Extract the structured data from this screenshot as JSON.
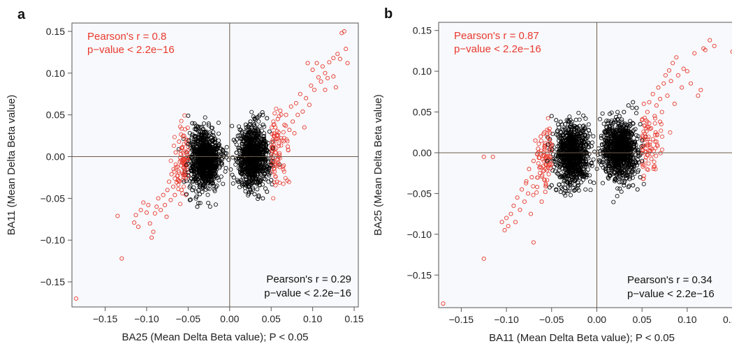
{
  "chart_data": [
    {
      "type": "scatter",
      "panel_label": "a",
      "xlabel": "BA25 (Mean Delta Beta value); P < 0.05",
      "ylabel": "BA11 (Mean Delta Beta value)",
      "xlim": [
        -0.19,
        0.155
      ],
      "ylim": [
        -0.18,
        0.16
      ],
      "x_ticks": [
        -0.15,
        -0.1,
        -0.05,
        0.0,
        0.05,
        0.1,
        0.15
      ],
      "x_tick_labels": [
        "−0.15",
        "−0.10",
        "−0.05",
        "0.00",
        "0.05",
        "0.10",
        "0.15"
      ],
      "y_ticks": [
        -0.15,
        -0.1,
        -0.05,
        0.0,
        0.05,
        0.1,
        0.15
      ],
      "y_tick_labels": [
        "−0.15",
        "−0.10",
        "−0.05",
        "0.00",
        "0.05",
        "0.10",
        "0.15"
      ],
      "annotations": {
        "top_left": [
          "Pearson's r = 0.8",
          "p−value < 2.2e−16"
        ],
        "bottom_right": [
          "Pearson's r = 0.29",
          "p−value < 2.2e−16"
        ]
      },
      "series": [
        {
          "color": "#e8392d",
          "points": [
            [
              -0.185,
              -0.17
            ],
            [
              -0.135,
              -0.071
            ],
            [
              -0.13,
              -0.122
            ],
            [
              -0.115,
              -0.079
            ],
            [
              -0.113,
              -0.07
            ],
            [
              -0.11,
              -0.084
            ],
            [
              -0.107,
              -0.064
            ],
            [
              -0.104,
              -0.055
            ],
            [
              -0.1,
              -0.067
            ],
            [
              -0.098,
              -0.058
            ],
            [
              -0.096,
              -0.08
            ],
            [
              -0.094,
              -0.097
            ],
            [
              -0.092,
              -0.09
            ],
            [
              -0.09,
              -0.068
            ],
            [
              -0.088,
              -0.06
            ],
            [
              -0.086,
              -0.05
            ],
            [
              -0.083,
              -0.064
            ],
            [
              -0.08,
              -0.046
            ],
            [
              -0.078,
              -0.058
            ],
            [
              -0.076,
              -0.072
            ],
            [
              -0.075,
              -0.04
            ],
            [
              -0.073,
              -0.03
            ],
            [
              -0.071,
              -0.052
            ],
            [
              -0.07,
              -0.021
            ],
            [
              -0.068,
              -0.036
            ],
            [
              -0.066,
              -0.046
            ],
            [
              -0.065,
              0.005
            ],
            [
              -0.063,
              -0.012
            ],
            [
              -0.062,
              -0.028
            ],
            [
              -0.061,
              0.018
            ],
            [
              -0.06,
              -0.006
            ],
            [
              -0.059,
              0.003
            ],
            [
              -0.058,
              -0.04
            ],
            [
              -0.057,
              0.01
            ],
            [
              -0.056,
              -0.022
            ],
            [
              -0.055,
              0.025
            ],
            [
              -0.054,
              -0.015
            ],
            [
              0.053,
              0.025
            ],
            [
              0.054,
              -0.018
            ],
            [
              0.055,
              0.035
            ],
            [
              0.056,
              0.01
            ],
            [
              0.057,
              -0.03
            ],
            [
              0.058,
              0.045
            ],
            [
              0.06,
              0.002
            ],
            [
              0.061,
              0.055
            ],
            [
              0.062,
              0.022
            ],
            [
              0.064,
              -0.012
            ],
            [
              0.066,
              0.038
            ],
            [
              0.068,
              0.05
            ],
            [
              0.07,
              0.012
            ],
            [
              0.072,
              0.032
            ],
            [
              0.074,
              0.06
            ],
            [
              0.076,
              0.042
            ],
            [
              0.078,
              0.028
            ],
            [
              0.08,
              0.064
            ],
            [
              0.082,
              0.05
            ],
            [
              0.085,
              0.075
            ],
            [
              0.088,
              0.054
            ],
            [
              0.09,
              0.035
            ],
            [
              0.092,
              0.07
            ],
            [
              0.094,
              0.112
            ],
            [
              0.096,
              0.062
            ],
            [
              0.098,
              0.085
            ],
            [
              0.1,
              0.104
            ],
            [
              0.102,
              0.08
            ],
            [
              0.105,
              0.112
            ],
            [
              0.107,
              0.095
            ],
            [
              0.11,
              0.09
            ],
            [
              0.112,
              0.108
            ],
            [
              0.115,
              0.1
            ],
            [
              0.118,
              0.094
            ],
            [
              0.12,
              0.113
            ],
            [
              0.125,
              0.096
            ],
            [
              0.128,
              0.083
            ],
            [
              0.13,
              0.123
            ],
            [
              0.133,
              0.117
            ],
            [
              0.135,
              0.148
            ],
            [
              0.138,
              0.15
            ],
            [
              0.14,
              0.129
            ],
            [
              0.142,
              0.112
            ],
            [
              0.125,
              0.118
            ],
            [
              0.115,
              0.08
            ]
          ]
        },
        {
          "color": "#000000",
          "points": [
            [
              -0.05,
              0.049
            ],
            [
              -0.045,
              0.04
            ],
            [
              -0.042,
              0.033
            ],
            [
              -0.038,
              0.036
            ],
            [
              -0.035,
              0.03
            ],
            [
              -0.03,
              0.03
            ],
            [
              -0.025,
              0.025
            ],
            [
              -0.02,
              0.02
            ],
            [
              -0.052,
              -0.045
            ],
            [
              -0.048,
              -0.052
            ],
            [
              -0.045,
              -0.04
            ],
            [
              -0.04,
              -0.048
            ],
            [
              -0.036,
              -0.045
            ],
            [
              -0.033,
              -0.038
            ],
            [
              -0.03,
              -0.036
            ],
            [
              -0.025,
              -0.03
            ],
            [
              -0.039,
              -0.06
            ],
            [
              -0.055,
              -0.03
            ],
            [
              -0.052,
              -0.01
            ],
            [
              -0.05,
              0.015
            ],
            [
              -0.012,
              0.01
            ],
            [
              -0.008,
              0.008
            ],
            [
              -0.004,
              0.004
            ],
            [
              0.005,
              -0.025
            ],
            [
              0.01,
              -0.03
            ],
            [
              0.015,
              -0.032
            ],
            [
              0.02,
              -0.035
            ],
            [
              0.025,
              -0.04
            ],
            [
              0.03,
              -0.045
            ],
            [
              0.035,
              -0.048
            ],
            [
              0.04,
              -0.05
            ],
            [
              0.045,
              -0.042
            ],
            [
              0.05,
              -0.028
            ],
            [
              0.048,
              0.03
            ],
            [
              0.045,
              0.046
            ],
            [
              0.04,
              0.05
            ],
            [
              0.035,
              0.048
            ],
            [
              0.03,
              0.045
            ],
            [
              0.025,
              0.042
            ],
            [
              0.02,
              0.035
            ],
            [
              0.015,
              0.03
            ],
            [
              0.01,
              0.025
            ],
            [
              0.005,
              0.02
            ],
            [
              0.052,
              0.01
            ],
            [
              0.05,
              -0.01
            ]
          ]
        }
      ]
    },
    {
      "type": "scatter",
      "panel_label": "b",
      "xlabel": "BA11 (Mean Delta Beta value); P < 0.05",
      "ylabel": "BA25 (Mean Delta Beta value)",
      "xlim": [
        -0.175,
        0.165
      ],
      "ylim": [
        -0.19,
        0.16
      ],
      "x_ticks": [
        -0.15,
        -0.1,
        -0.05,
        0.0,
        0.05,
        0.1,
        0.15
      ],
      "x_tick_labels": [
        "−0.15",
        "−0.10",
        "−0.05",
        "0.00",
        "0.05",
        "0.10",
        "0.15"
      ],
      "y_ticks": [
        -0.15,
        -0.1,
        -0.05,
        0.0,
        0.05,
        0.1,
        0.15
      ],
      "y_tick_labels": [
        "−0.15",
        "−0.10",
        "−0.05",
        "0.00",
        "0.05",
        "0.10",
        "0.15"
      ],
      "annotations": {
        "top_left": [
          "Pearson's r = 0.87",
          "p−value < 2.2e−16"
        ],
        "bottom_right": [
          "Pearson's r = 0.34",
          "p−value < 2.2e−16"
        ]
      },
      "series": [
        {
          "color": "#e8392d",
          "points": [
            [
              -0.17,
              -0.185
            ],
            [
              -0.125,
              -0.13
            ],
            [
              -0.125,
              -0.005
            ],
            [
              -0.115,
              -0.005
            ],
            [
              -0.105,
              -0.085
            ],
            [
              -0.102,
              -0.095
            ],
            [
              -0.1,
              -0.08
            ],
            [
              -0.098,
              -0.09
            ],
            [
              -0.095,
              -0.075
            ],
            [
              -0.092,
              -0.065
            ],
            [
              -0.09,
              -0.085
            ],
            [
              -0.088,
              -0.055
            ],
            [
              -0.085,
              -0.07
            ],
            [
              -0.083,
              -0.045
            ],
            [
              -0.08,
              -0.06
            ],
            [
              -0.078,
              -0.035
            ],
            [
              -0.076,
              -0.05
            ],
            [
              -0.075,
              -0.02
            ],
            [
              -0.073,
              -0.075
            ],
            [
              -0.072,
              -0.03
            ],
            [
              -0.07,
              -0.01
            ],
            [
              -0.068,
              0.015
            ],
            [
              -0.066,
              -0.042
            ],
            [
              -0.065,
              0.005
            ],
            [
              -0.063,
              -0.025
            ],
            [
              -0.062,
              0.02
            ],
            [
              -0.061,
              -0.06
            ],
            [
              -0.06,
              -0.008
            ],
            [
              -0.058,
              0.025
            ],
            [
              -0.057,
              -0.048
            ],
            [
              -0.056,
              -0.015
            ],
            [
              -0.055,
              0.028
            ],
            [
              -0.07,
              -0.11
            ],
            [
              0.05,
              0.04
            ],
            [
              0.052,
              0.06
            ],
            [
              0.054,
              0.02
            ],
            [
              0.056,
              0.05
            ],
            [
              0.058,
              0.062
            ],
            [
              0.06,
              0.03
            ],
            [
              0.062,
              0.072
            ],
            [
              0.064,
              0.045
            ],
            [
              0.066,
              0.058
            ],
            [
              0.068,
              0.08
            ],
            [
              0.07,
              0.066
            ],
            [
              0.072,
              0.05
            ],
            [
              0.074,
              0.085
            ],
            [
              0.076,
              0.095
            ],
            [
              0.078,
              0.07
            ],
            [
              0.08,
              0.101
            ],
            [
              0.082,
              0.088
            ],
            [
              0.084,
              0.11
            ],
            [
              0.086,
              0.06
            ],
            [
              0.088,
              0.117
            ],
            [
              0.09,
              0.095
            ],
            [
              0.094,
              0.08
            ],
            [
              0.096,
              0.103
            ],
            [
              0.1,
              0.1
            ],
            [
              0.104,
              0.085
            ],
            [
              0.108,
              0.122
            ],
            [
              0.112,
              0.07
            ],
            [
              0.115,
              0.077
            ],
            [
              0.118,
              0.128
            ],
            [
              0.12,
              0.126
            ],
            [
              0.125,
              0.138
            ],
            [
              0.13,
              0.131
            ],
            [
              0.15,
              0.124
            ],
            [
              0.155,
              0.148
            ],
            [
              0.16,
              0.148
            ],
            [
              0.07,
              0.038
            ],
            [
              0.065,
              0.025
            ]
          ]
        },
        {
          "color": "#000000",
          "points": [
            [
              -0.05,
              0.045
            ],
            [
              -0.045,
              0.04
            ],
            [
              -0.04,
              0.038
            ],
            [
              -0.035,
              0.035
            ],
            [
              -0.03,
              0.032
            ],
            [
              -0.025,
              0.028
            ],
            [
              -0.02,
              0.022
            ],
            [
              -0.015,
              0.018
            ],
            [
              -0.05,
              -0.04
            ],
            [
              -0.045,
              -0.045
            ],
            [
              -0.04,
              -0.048
            ],
            [
              -0.035,
              -0.043
            ],
            [
              -0.03,
              -0.04
            ],
            [
              -0.025,
              -0.034
            ],
            [
              -0.02,
              -0.026
            ],
            [
              -0.015,
              -0.02
            ],
            [
              -0.055,
              -0.01
            ],
            [
              -0.054,
              0.01
            ],
            [
              -0.01,
              0.012
            ],
            [
              -0.006,
              0.008
            ],
            [
              0.005,
              -0.015
            ],
            [
              0.01,
              -0.022
            ],
            [
              0.015,
              -0.028
            ],
            [
              0.02,
              -0.033
            ],
            [
              0.025,
              -0.036
            ],
            [
              0.03,
              -0.04
            ],
            [
              0.035,
              -0.042
            ],
            [
              0.04,
              -0.04
            ],
            [
              0.045,
              -0.045
            ],
            [
              0.048,
              -0.03
            ],
            [
              0.048,
              0.035
            ],
            [
              0.044,
              0.055
            ],
            [
              0.04,
              0.062
            ],
            [
              0.035,
              0.058
            ],
            [
              0.03,
              0.05
            ],
            [
              0.025,
              0.045
            ],
            [
              0.02,
              0.04
            ],
            [
              0.015,
              0.033
            ],
            [
              0.01,
              0.025
            ],
            [
              0.005,
              0.018
            ],
            [
              0.05,
              0.015
            ],
            [
              0.05,
              -0.01
            ]
          ]
        }
      ]
    }
  ]
}
